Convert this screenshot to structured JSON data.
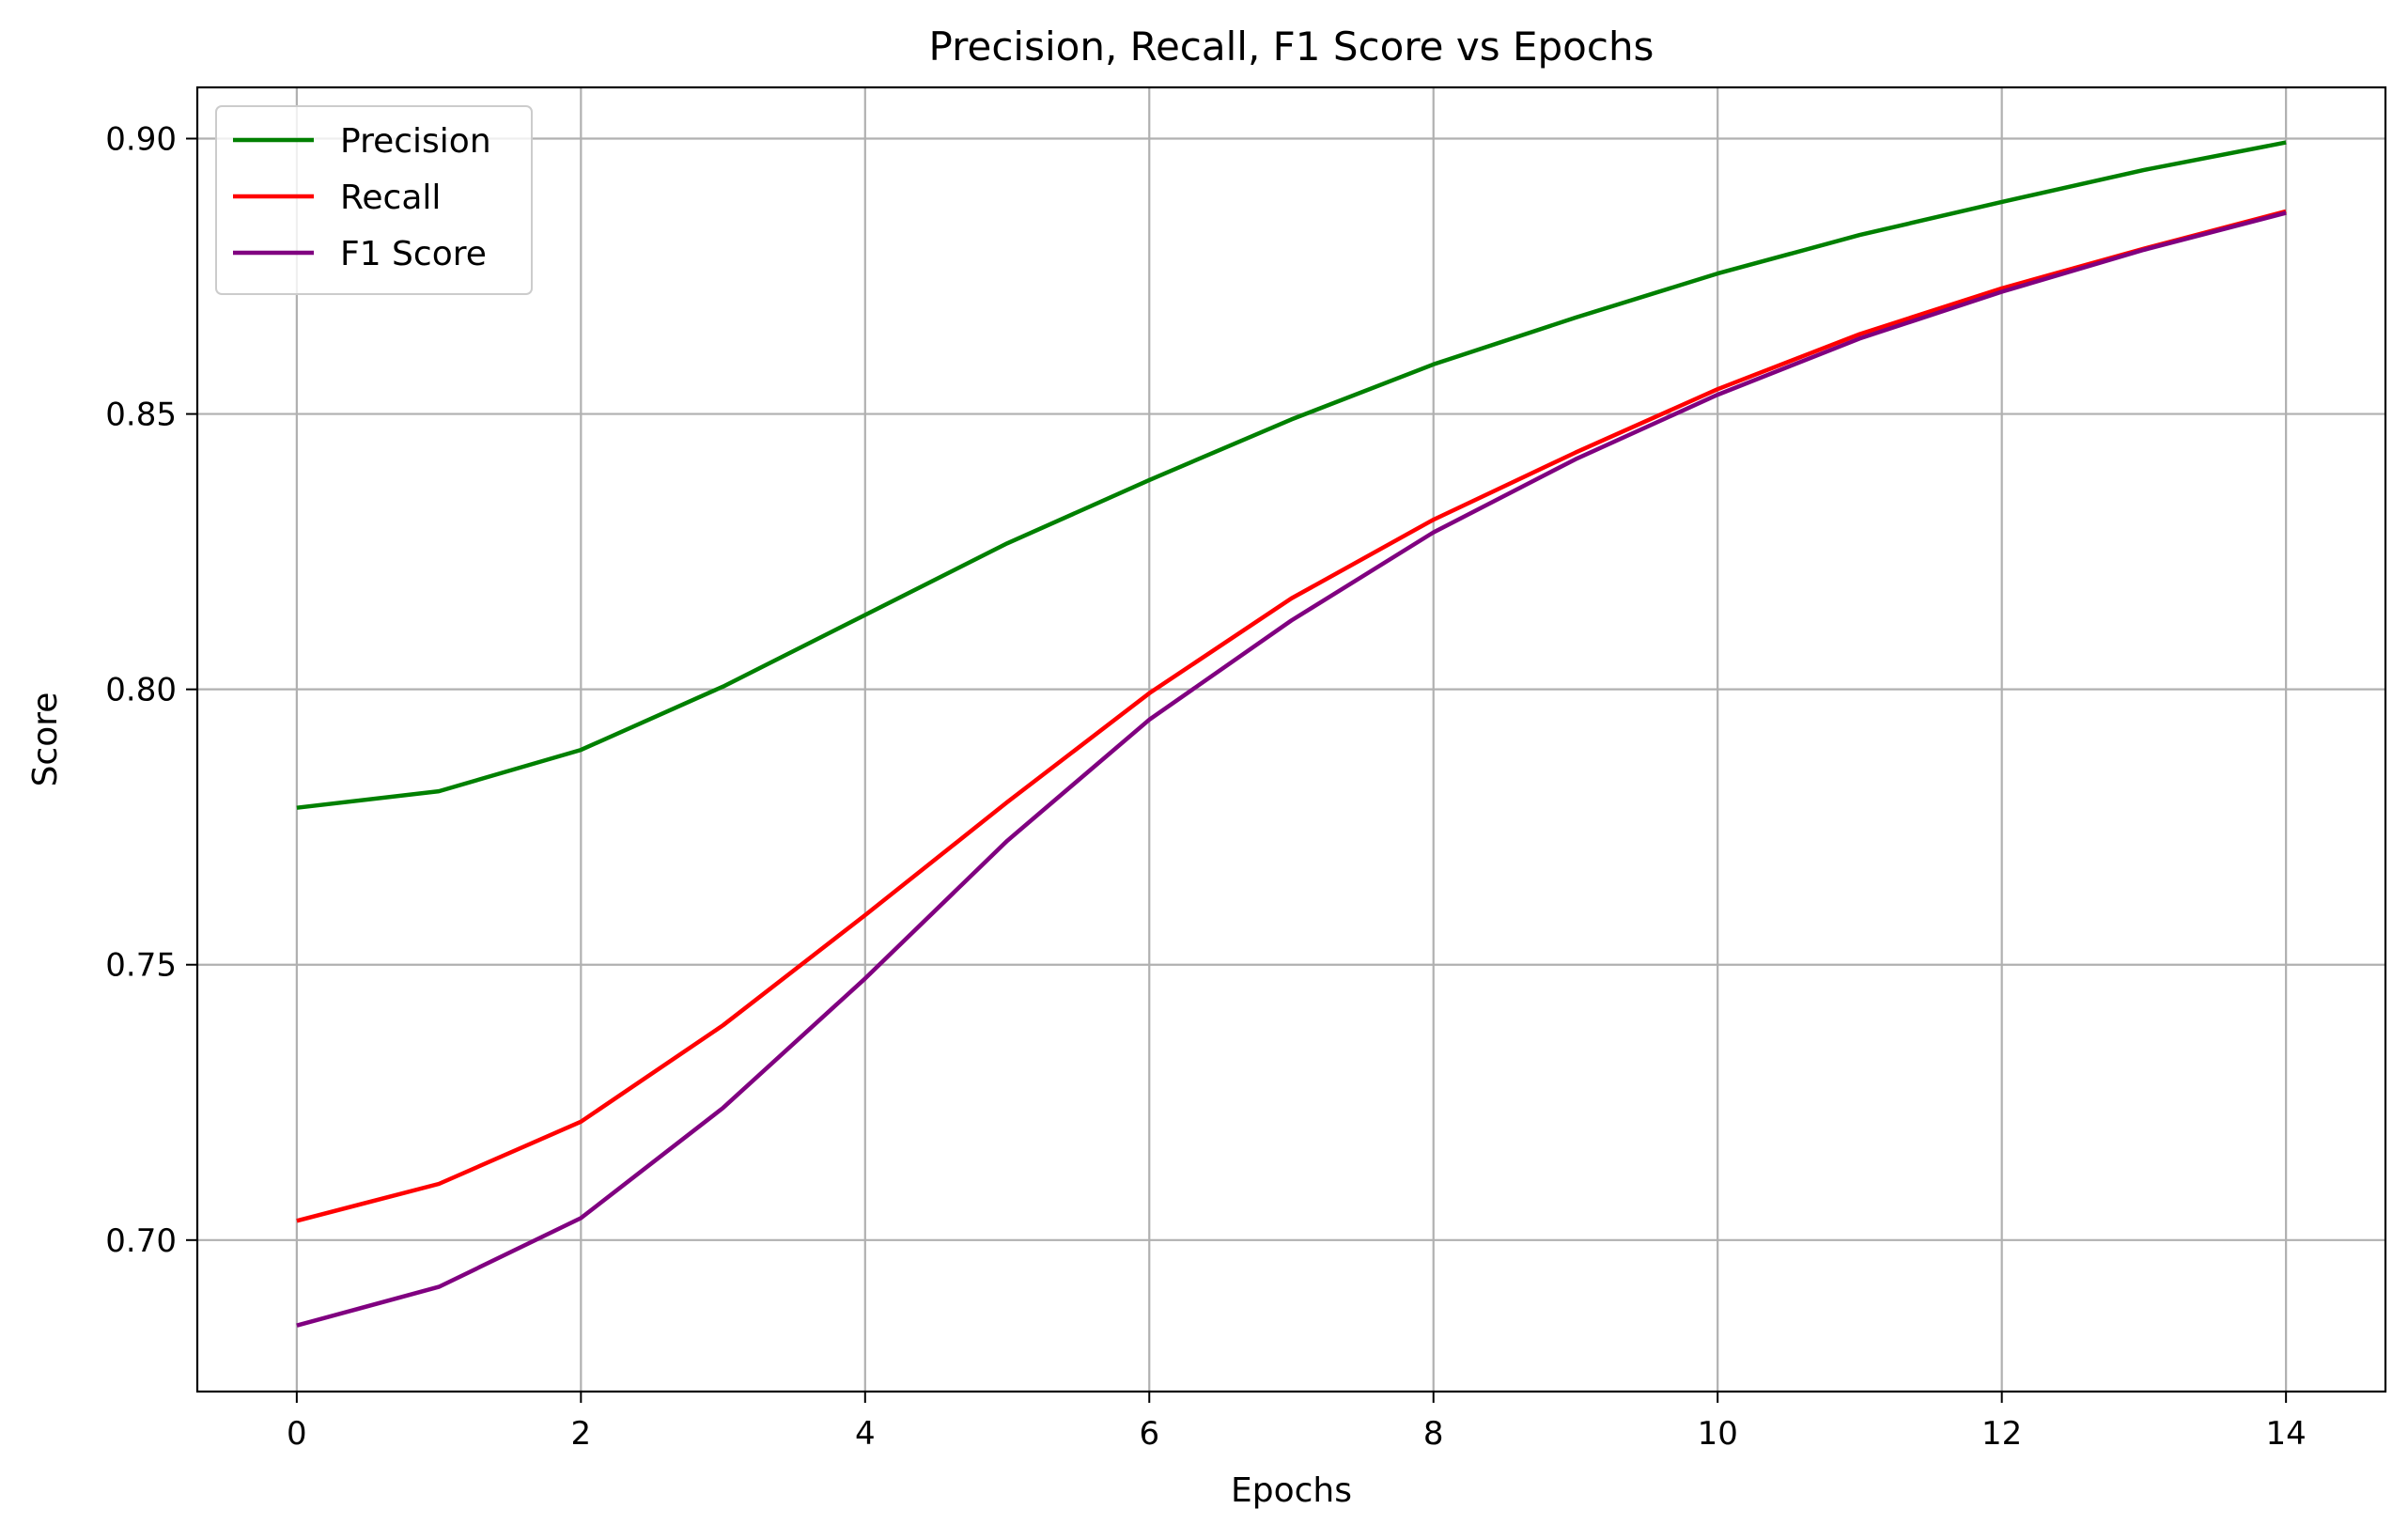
{
  "chart_data": {
    "type": "line",
    "title": "Precision, Recall, F1 Score vs Epochs",
    "xlabel": "Epochs",
    "ylabel": "Score",
    "x": [
      0,
      1,
      2,
      3,
      4,
      5,
      6,
      7,
      8,
      9,
      10,
      11,
      12,
      13,
      14
    ],
    "xlim": [
      -0.7,
      14.7
    ],
    "ylim": [
      0.6725,
      0.9093
    ],
    "xticks": [
      0,
      2,
      4,
      6,
      8,
      10,
      12,
      14
    ],
    "yticks": [
      0.7,
      0.75,
      0.8,
      0.85,
      0.9
    ],
    "xtick_labels": [
      "0",
      "2",
      "4",
      "6",
      "8",
      "10",
      "12",
      "14"
    ],
    "ytick_labels": [
      "0.70",
      "0.75",
      "0.80",
      "0.85",
      "0.90"
    ],
    "grid": true,
    "legend_position": "top-left",
    "series": [
      {
        "name": "Precision",
        "color": "#008000",
        "values": [
          0.7785,
          0.7815,
          0.789,
          0.8005,
          0.8135,
          0.8265,
          0.838,
          0.849,
          0.859,
          0.8675,
          0.8755,
          0.8825,
          0.8885,
          0.8943,
          0.8993
        ]
      },
      {
        "name": "Recall",
        "color": "#ff0000",
        "values": [
          0.7035,
          0.7102,
          0.7215,
          0.739,
          0.759,
          0.7795,
          0.7993,
          0.8165,
          0.8308,
          0.843,
          0.8545,
          0.8645,
          0.8728,
          0.88,
          0.8868
        ]
      },
      {
        "name": "F1 Score",
        "color": "#800080",
        "values": [
          0.6845,
          0.6915,
          0.704,
          0.724,
          0.7475,
          0.7725,
          0.7945,
          0.8125,
          0.8285,
          0.8418,
          0.8535,
          0.8637,
          0.8722,
          0.8798,
          0.8865
        ]
      }
    ]
  }
}
